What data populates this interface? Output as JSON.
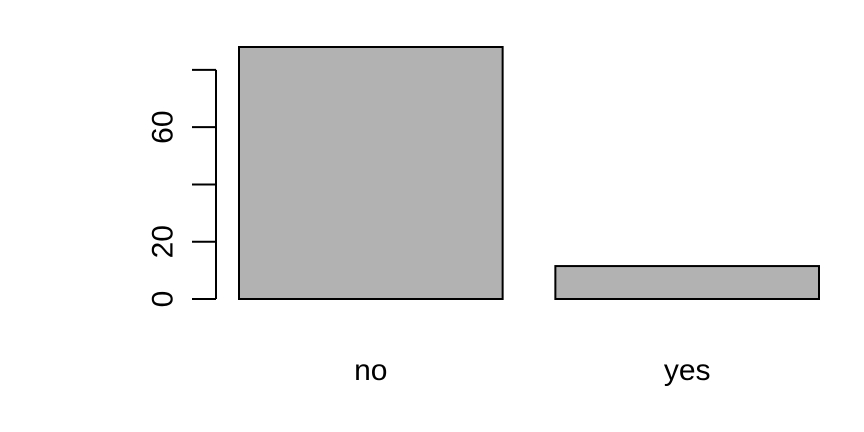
{
  "chart_data": {
    "type": "bar",
    "categories": [
      "no",
      "yes"
    ],
    "values": [
      88,
      11.5
    ],
    "ylim": [
      0,
      88
    ],
    "yticks": [
      0,
      20,
      40,
      60,
      80
    ],
    "ytick_labels": [
      "0",
      "20",
      "",
      "60",
      ""
    ],
    "bar_color": "#b2b2b2",
    "title": "",
    "xlabel": "",
    "ylabel": "",
    "grid": false,
    "legend": "none"
  }
}
